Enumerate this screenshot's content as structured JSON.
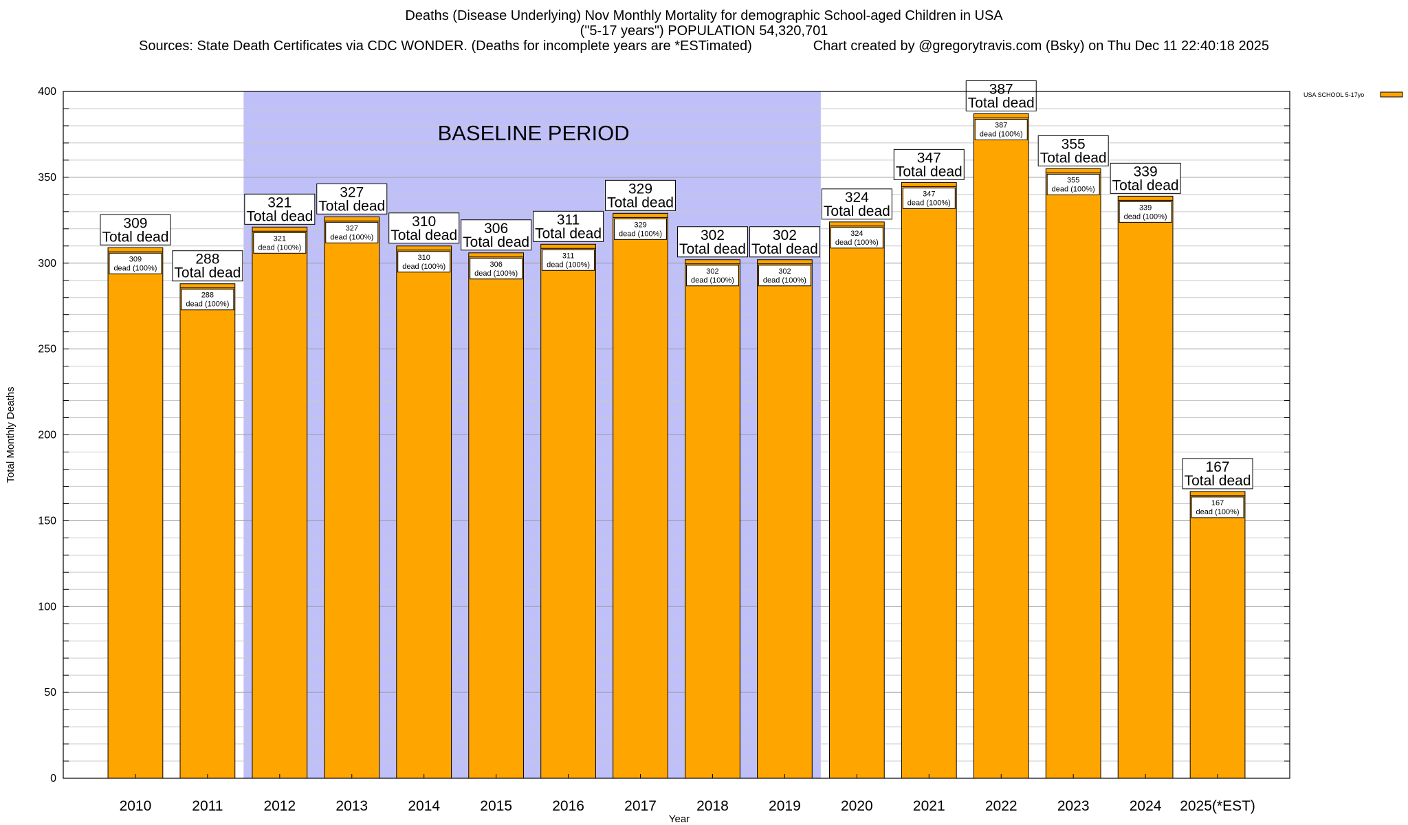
{
  "chart_data": {
    "type": "bar",
    "title_lines": [
      "Deaths (Disease Underlying) Nov Monthly Mortality for demographic School-aged Children in USA",
      "(\"5-17 years\") POPULATION 54,320,701",
      "Sources: State Death Certificates via CDC WONDER. (Deaths for incomplete years are *ESTimated)                Chart created by @gregorytravis.com (Bsky) on Thu Dec 11 22:40:18 2025"
    ],
    "xlabel": "Year",
    "ylabel": "Total Monthly Deaths",
    "ylim": [
      0,
      400
    ],
    "y_major_ticks": [
      0,
      50,
      100,
      150,
      200,
      250,
      300,
      350,
      400
    ],
    "y_minor_step": 10,
    "grid": true,
    "categories": [
      "2010",
      "2011",
      "2012",
      "2013",
      "2014",
      "2015",
      "2016",
      "2017",
      "2018",
      "2019",
      "2020",
      "2021",
      "2022",
      "2023",
      "2024",
      "2025(*EST)"
    ],
    "series": [
      {
        "name": "USA SCHOOL 5-17yo",
        "color": "#ffa500",
        "values": [
          309,
          288,
          321,
          327,
          310,
          306,
          311,
          329,
          302,
          302,
          324,
          347,
          387,
          355,
          339,
          167
        ]
      }
    ],
    "total_label": "Total dead",
    "inner_label": "dead (100%)",
    "legend_position": "top-right",
    "baseline_period": {
      "label": "BASELINE PERIOD",
      "start_category": "2012",
      "end_category": "2019",
      "color": "#c0c0f8"
    }
  }
}
